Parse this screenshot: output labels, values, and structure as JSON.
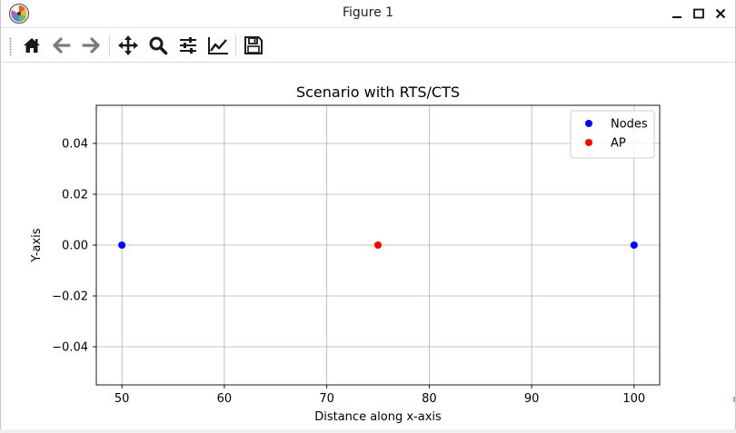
{
  "window": {
    "title": "Figure 1",
    "app_icon": "matplotlib-logo"
  },
  "window_controls": [
    {
      "name": "minimize-button",
      "icon": "minimize-icon"
    },
    {
      "name": "maximize-button",
      "icon": "maximize-icon"
    },
    {
      "name": "close-button",
      "icon": "close-icon"
    }
  ],
  "toolbar": {
    "buttons": [
      {
        "name": "home-button",
        "icon": "home-icon"
      },
      {
        "name": "back-button",
        "icon": "arrow-left-icon"
      },
      {
        "name": "forward-button",
        "icon": "arrow-right-icon"
      },
      {
        "name": "pan-button",
        "icon": "move-icon"
      },
      {
        "name": "zoom-button",
        "icon": "zoom-icon"
      },
      {
        "name": "subplots-button",
        "icon": "sliders-icon"
      },
      {
        "name": "edit-axis-button",
        "icon": "chart-line-icon"
      },
      {
        "name": "save-button",
        "icon": "save-icon"
      }
    ]
  },
  "colors": {
    "nodes": "#0000ff",
    "ap": "#ff0000",
    "grid": "#b0b0b0",
    "axes": "#000000",
    "icon": "#1a1a1a",
    "icon_disabled": "#7a7a7a"
  },
  "chart_data": {
    "type": "scatter",
    "title": "Scenario with RTS/CTS",
    "xlabel": "Distance along x-axis",
    "ylabel": "Y-axis",
    "xlim": [
      47.5,
      102.5
    ],
    "ylim": [
      -0.055,
      0.055
    ],
    "xticks": [
      50,
      60,
      70,
      80,
      90,
      100
    ],
    "xtick_labels": [
      "50",
      "60",
      "70",
      "80",
      "90",
      "100"
    ],
    "yticks": [
      0.04,
      0.02,
      0.0,
      -0.02,
      -0.04
    ],
    "ytick_labels": [
      "0.04",
      "0.02",
      "0.00",
      "−0.02",
      "−0.04"
    ],
    "grid": true,
    "legend_position": "upper-right",
    "series": [
      {
        "name": "Nodes",
        "color": "#0000ff",
        "points": [
          {
            "x": 50,
            "y": 0.0
          },
          {
            "x": 100,
            "y": 0.0
          }
        ]
      },
      {
        "name": "AP",
        "color": "#ff0000",
        "points": [
          {
            "x": 75,
            "y": 0.0
          }
        ]
      }
    ]
  }
}
